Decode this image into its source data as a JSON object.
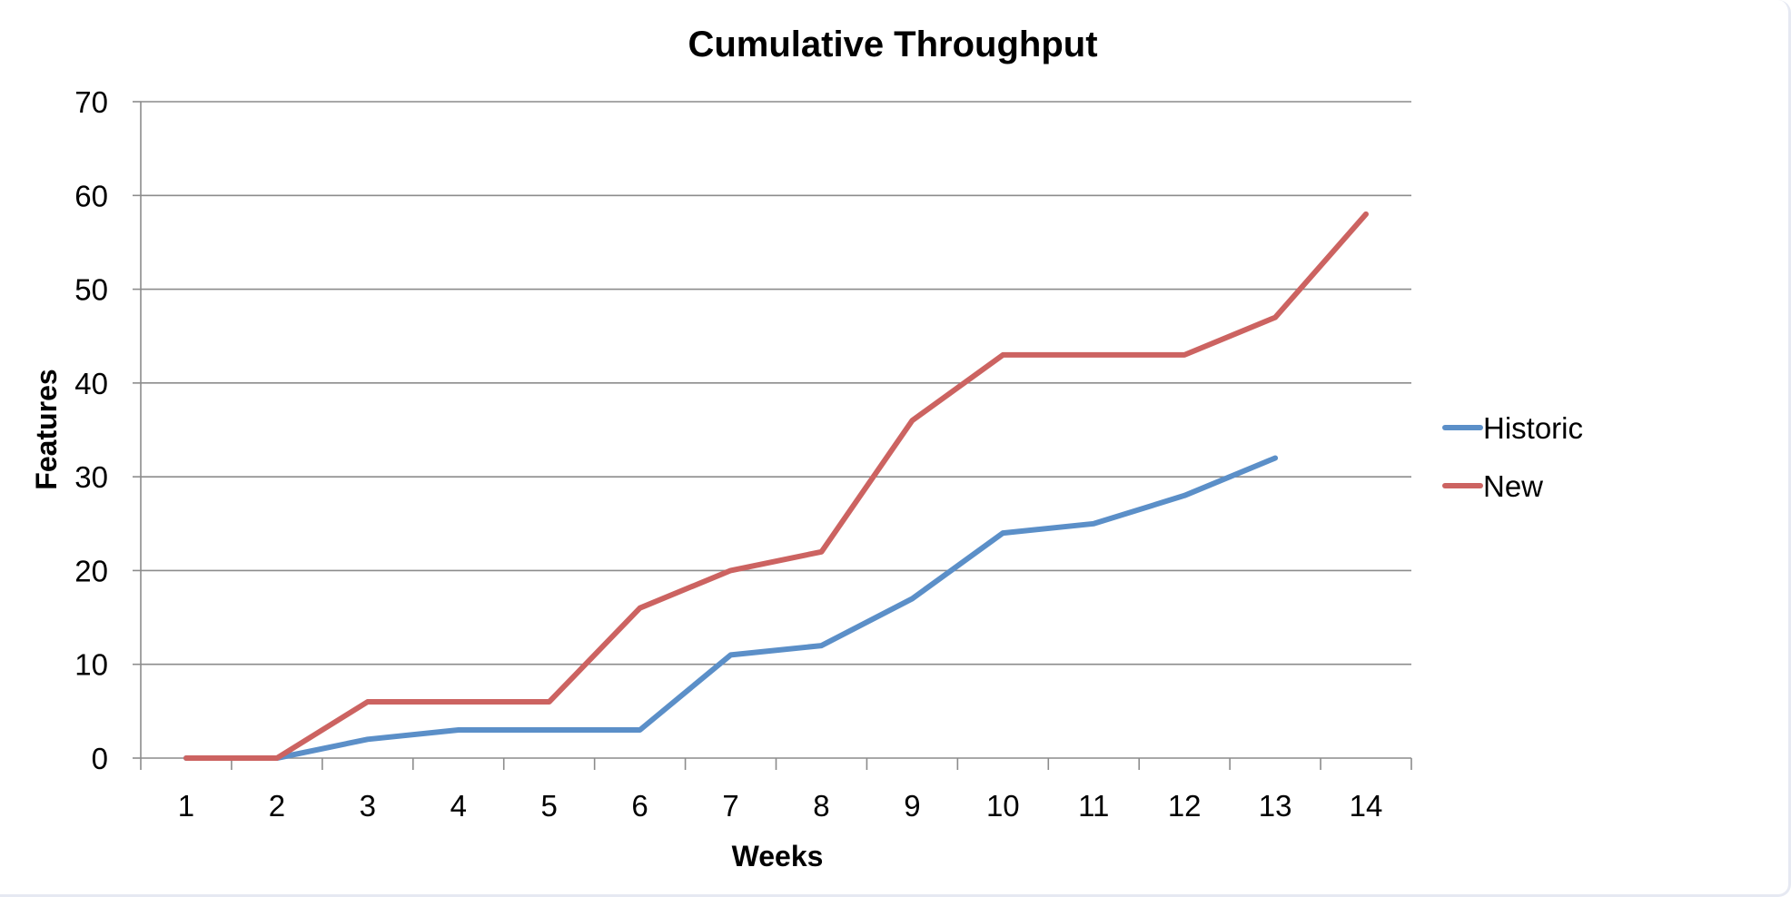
{
  "chart_data": {
    "type": "line",
    "title": "Cumulative Throughput",
    "xlabel": "Weeks",
    "ylabel": "Features",
    "categories": [
      "1",
      "2",
      "3",
      "4",
      "5",
      "6",
      "7",
      "8",
      "9",
      "10",
      "11",
      "12",
      "13",
      "14"
    ],
    "yticks": [
      "0",
      "10",
      "20",
      "30",
      "40",
      "50",
      "60",
      "70"
    ],
    "ylim": [
      0,
      70
    ],
    "grid": true,
    "legend_position": "right",
    "series": [
      {
        "name": "Historic",
        "color": "#5b8fc8",
        "values": [
          0,
          0,
          2,
          3,
          3,
          3,
          11,
          12,
          17,
          24,
          25,
          28,
          32,
          null
        ]
      },
      {
        "name": "New",
        "color": "#cc6361",
        "values": [
          0,
          0,
          6,
          6,
          6,
          16,
          20,
          22,
          36,
          43,
          43,
          43,
          47,
          58
        ]
      }
    ]
  }
}
